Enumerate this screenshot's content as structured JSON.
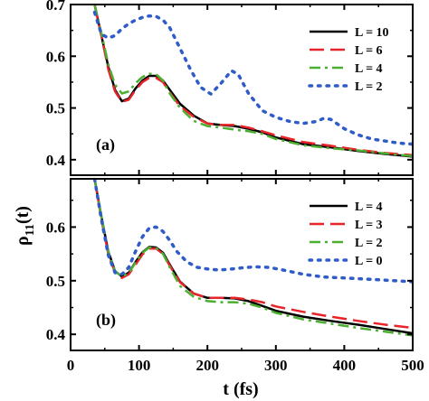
{
  "chart_data": [
    {
      "panel": "top",
      "type": "line",
      "panel_label": "(a)",
      "xlim": [
        0,
        500
      ],
      "ylim": [
        0.37,
        0.7
      ],
      "yticks": [
        0.4,
        0.5,
        0.6,
        0.7
      ],
      "ytick_labels": [
        "0.4",
        "0.5",
        "0.6",
        "0.7"
      ],
      "legend_position": "top-right",
      "series": [
        {
          "name": "L = 10",
          "color": "#000000",
          "style": "solid",
          "x": [
            35,
            45,
            55,
            65,
            75,
            85,
            95,
            105,
            115,
            125,
            135,
            145,
            160,
            180,
            200,
            220,
            240,
            260,
            280,
            300,
            340,
            380,
            420,
            460,
            500
          ],
          "y": [
            0.7,
            0.64,
            0.58,
            0.535,
            0.513,
            0.518,
            0.538,
            0.553,
            0.562,
            0.562,
            0.553,
            0.535,
            0.508,
            0.485,
            0.47,
            0.467,
            0.465,
            0.46,
            0.453,
            0.443,
            0.43,
            0.424,
            0.417,
            0.411,
            0.406
          ]
        },
        {
          "name": "L = 6",
          "color": "#e8242b",
          "style": "dashed",
          "x": [
            35,
            45,
            55,
            65,
            75,
            85,
            95,
            105,
            115,
            125,
            135,
            145,
            160,
            180,
            200,
            220,
            240,
            260,
            280,
            300,
            340,
            380,
            420,
            460,
            500
          ],
          "y": [
            0.7,
            0.64,
            0.575,
            0.532,
            0.512,
            0.516,
            0.535,
            0.55,
            0.558,
            0.558,
            0.55,
            0.53,
            0.503,
            0.483,
            0.47,
            0.467,
            0.467,
            0.462,
            0.455,
            0.447,
            0.434,
            0.427,
            0.419,
            0.413,
            0.409
          ]
        },
        {
          "name": "L = 4",
          "color": "#4caf32",
          "style": "dashdot",
          "x": [
            35,
            45,
            55,
            65,
            75,
            85,
            95,
            105,
            115,
            125,
            135,
            145,
            160,
            180,
            200,
            220,
            240,
            260,
            280,
            300,
            340,
            380,
            420,
            460,
            500
          ],
          "y": [
            0.7,
            0.645,
            0.585,
            0.545,
            0.528,
            0.532,
            0.548,
            0.56,
            0.566,
            0.565,
            0.553,
            0.528,
            0.5,
            0.475,
            0.465,
            0.462,
            0.458,
            0.455,
            0.45,
            0.44,
            0.428,
            0.422,
            0.418,
            0.412,
            0.407
          ]
        },
        {
          "name": "L = 2",
          "color": "#2f5cc9",
          "style": "dotted",
          "x": [
            35,
            45,
            55,
            65,
            75,
            85,
            95,
            105,
            115,
            125,
            135,
            145,
            160,
            175,
            190,
            205,
            220,
            235,
            245,
            260,
            280,
            300,
            320,
            340,
            360,
            370,
            380,
            400,
            420,
            440,
            460,
            480,
            500
          ],
          "y": [
            0.685,
            0.643,
            0.635,
            0.64,
            0.653,
            0.663,
            0.67,
            0.675,
            0.678,
            0.677,
            0.67,
            0.655,
            0.615,
            0.575,
            0.54,
            0.527,
            0.548,
            0.572,
            0.565,
            0.528,
            0.495,
            0.482,
            0.474,
            0.47,
            0.474,
            0.48,
            0.478,
            0.46,
            0.448,
            0.44,
            0.436,
            0.432,
            0.43
          ]
        }
      ]
    },
    {
      "panel": "bottom",
      "type": "line",
      "panel_label": "(b)",
      "xlim": [
        0,
        500
      ],
      "ylim": [
        0.37,
        0.69
      ],
      "yticks": [
        0.4,
        0.5,
        0.6
      ],
      "ytick_labels": [
        "0.4",
        "0.5",
        "0.6"
      ],
      "xticks": [
        0,
        100,
        200,
        300,
        400,
        500
      ],
      "xtick_labels": [
        "0",
        "100",
        "200",
        "300",
        "400",
        "500"
      ],
      "legend_position": "top-right",
      "series": [
        {
          "name": "L = 4",
          "color": "#000000",
          "style": "solid",
          "x": [
            35,
            45,
            55,
            65,
            75,
            85,
            95,
            105,
            115,
            125,
            135,
            145,
            160,
            180,
            200,
            220,
            240,
            260,
            280,
            300,
            340,
            380,
            420,
            460,
            500
          ],
          "y": [
            0.69,
            0.62,
            0.555,
            0.518,
            0.508,
            0.515,
            0.535,
            0.553,
            0.563,
            0.562,
            0.552,
            0.53,
            0.498,
            0.476,
            0.468,
            0.468,
            0.467,
            0.462,
            0.453,
            0.444,
            0.433,
            0.425,
            0.418,
            0.41,
            0.402
          ]
        },
        {
          "name": "L = 3",
          "color": "#e8242b",
          "style": "dashed",
          "x": [
            35,
            45,
            55,
            65,
            75,
            85,
            95,
            105,
            115,
            125,
            135,
            145,
            160,
            180,
            200,
            220,
            240,
            260,
            280,
            300,
            340,
            380,
            420,
            460,
            500
          ],
          "y": [
            0.69,
            0.615,
            0.55,
            0.515,
            0.505,
            0.512,
            0.53,
            0.549,
            0.56,
            0.56,
            0.55,
            0.528,
            0.497,
            0.476,
            0.468,
            0.468,
            0.468,
            0.465,
            0.46,
            0.452,
            0.442,
            0.433,
            0.425,
            0.418,
            0.412
          ]
        },
        {
          "name": "L = 2",
          "color": "#4caf32",
          "style": "dashdot",
          "x": [
            35,
            45,
            55,
            65,
            75,
            85,
            95,
            105,
            115,
            125,
            135,
            145,
            160,
            180,
            200,
            220,
            240,
            260,
            280,
            300,
            340,
            380,
            420,
            460,
            500
          ],
          "y": [
            0.69,
            0.62,
            0.555,
            0.518,
            0.508,
            0.514,
            0.534,
            0.552,
            0.562,
            0.561,
            0.55,
            0.525,
            0.49,
            0.47,
            0.462,
            0.46,
            0.46,
            0.457,
            0.45,
            0.44,
            0.428,
            0.42,
            0.412,
            0.405,
            0.398
          ]
        },
        {
          "name": "L = 0",
          "color": "#2f5cc9",
          "style": "dotted",
          "x": [
            35,
            45,
            55,
            65,
            75,
            85,
            95,
            105,
            115,
            125,
            135,
            145,
            155,
            170,
            185,
            200,
            215,
            230,
            250,
            270,
            290,
            310,
            340,
            370,
            400,
            430,
            460,
            500
          ],
          "y": [
            0.69,
            0.615,
            0.548,
            0.515,
            0.512,
            0.525,
            0.555,
            0.582,
            0.598,
            0.6,
            0.592,
            0.575,
            0.555,
            0.535,
            0.525,
            0.522,
            0.52,
            0.521,
            0.524,
            0.526,
            0.525,
            0.52,
            0.512,
            0.507,
            0.505,
            0.503,
            0.501,
            0.498
          ]
        }
      ]
    }
  ],
  "axes": {
    "ylabel": "ρ",
    "ylabel_sub": "11",
    "ylabel_suffix": "(t)",
    "xlabel": "t (fs)"
  }
}
